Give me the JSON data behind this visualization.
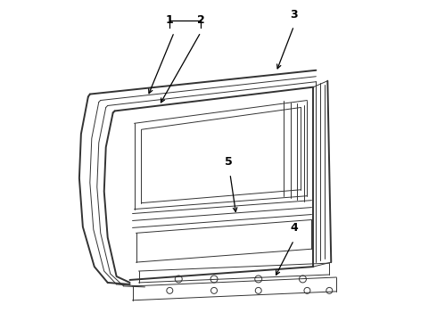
{
  "background_color": "#ffffff",
  "line_color": "#333333",
  "label_color": "#000000",
  "lw_main": 1.4,
  "lw_thin": 0.7,
  "lw_med": 1.0
}
